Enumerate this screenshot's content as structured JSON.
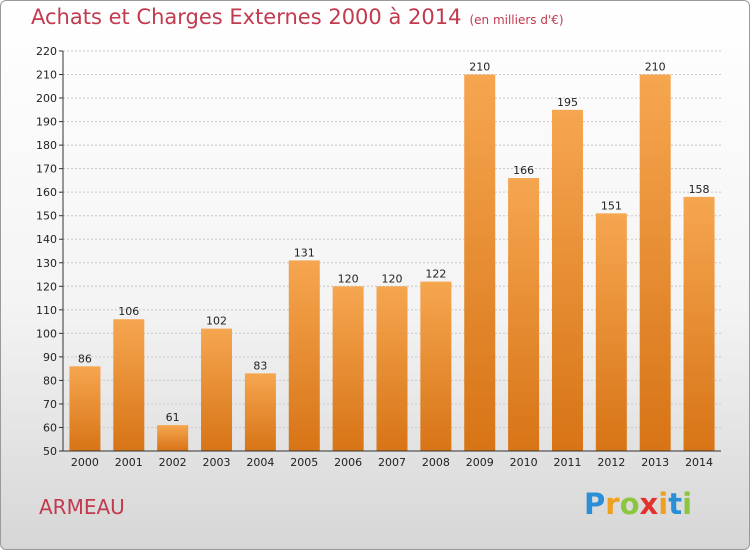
{
  "title": "Achats et Charges Externes 2000 à 2014",
  "subtitle": "(en milliers d'€)",
  "commune": "ARMEAU",
  "logo": {
    "letters": [
      "P",
      "r",
      "o",
      "x",
      "i",
      "t",
      "i"
    ],
    "colors": [
      "#2a8fd6",
      "#f0a020",
      "#8cc63f",
      "#e2322e",
      "#f0a020",
      "#2a8fd6",
      "#8cc63f"
    ]
  },
  "colors": {
    "bar_top": "#f6a650",
    "bar_bottom": "#d77416",
    "title": "#c23a4e"
  },
  "chart_data": {
    "type": "bar",
    "categories": [
      "2000",
      "2001",
      "2002",
      "2003",
      "2004",
      "2005",
      "2006",
      "2007",
      "2008",
      "2009",
      "2010",
      "2011",
      "2012",
      "2013",
      "2014"
    ],
    "values": [
      86,
      106,
      61,
      102,
      83,
      131,
      120,
      120,
      122,
      210,
      166,
      195,
      151,
      210,
      158
    ],
    "data_labels": [
      "86",
      "106",
      "61",
      "102",
      "83",
      "131",
      "120",
      "120",
      "122",
      "210",
      "166",
      "195",
      "151",
      "210",
      "158"
    ],
    "yticks": [
      "50",
      "60",
      "70",
      "80",
      "90",
      "100",
      "110",
      "120",
      "130",
      "140",
      "150",
      "160",
      "170",
      "180",
      "190",
      "200",
      "210",
      "220"
    ],
    "ylim": [
      50,
      220
    ],
    "grid": true
  }
}
